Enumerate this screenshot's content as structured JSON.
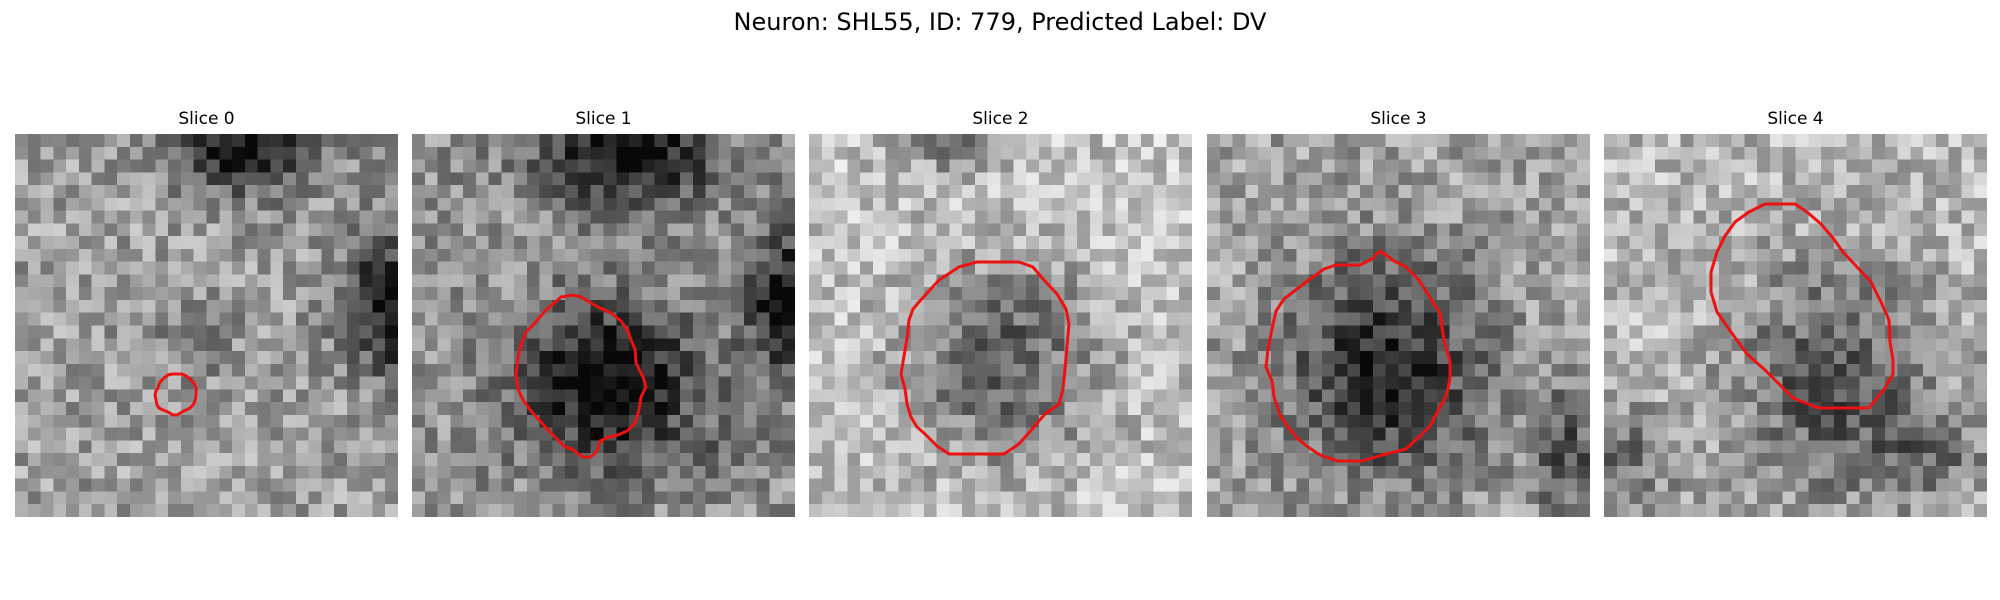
{
  "figure": {
    "title": "Neuron: SHL55, ID: 779, Predicted Label: DV",
    "contour_color": "#ee1111"
  },
  "panels": [
    {
      "label": "Slice 0"
    },
    {
      "label": "Slice 1"
    },
    {
      "label": "Slice 2"
    },
    {
      "label": "Slice 3"
    },
    {
      "label": "Slice 4"
    }
  ]
}
